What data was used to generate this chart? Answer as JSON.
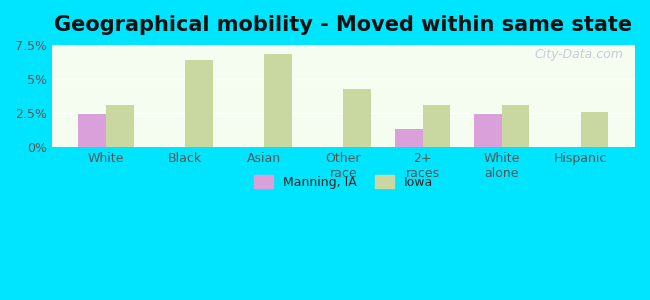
{
  "title": "Geographical mobility - Moved within same state",
  "categories": [
    "White",
    "Black",
    "Asian",
    "Other\nrace",
    "2+\nraces",
    "White\nalone",
    "Hispanic"
  ],
  "manning_values": [
    2.4,
    0,
    0,
    0,
    1.3,
    2.4,
    0
  ],
  "iowa_values": [
    3.1,
    6.4,
    6.85,
    4.3,
    3.1,
    3.1,
    2.6
  ],
  "manning_color": "#d9a0d9",
  "iowa_color": "#c8d8a0",
  "ylim": [
    0,
    7.5
  ],
  "yticks": [
    0,
    2.5,
    5.0,
    7.5
  ],
  "ytick_labels": [
    "0%",
    "2.5%",
    "5%",
    "7.5%"
  ],
  "bar_width": 0.35,
  "background_color": "#e0fafa",
  "plot_bg_start": "#f5fdf0",
  "plot_bg_end": "#ffffff",
  "legend_manning": "Manning, IA",
  "legend_iowa": "Iowa",
  "watermark": "City-Data.com",
  "outer_bg": "#00e5ff",
  "title_fontsize": 15,
  "axis_color": "#555555",
  "tick_color": "#555555"
}
